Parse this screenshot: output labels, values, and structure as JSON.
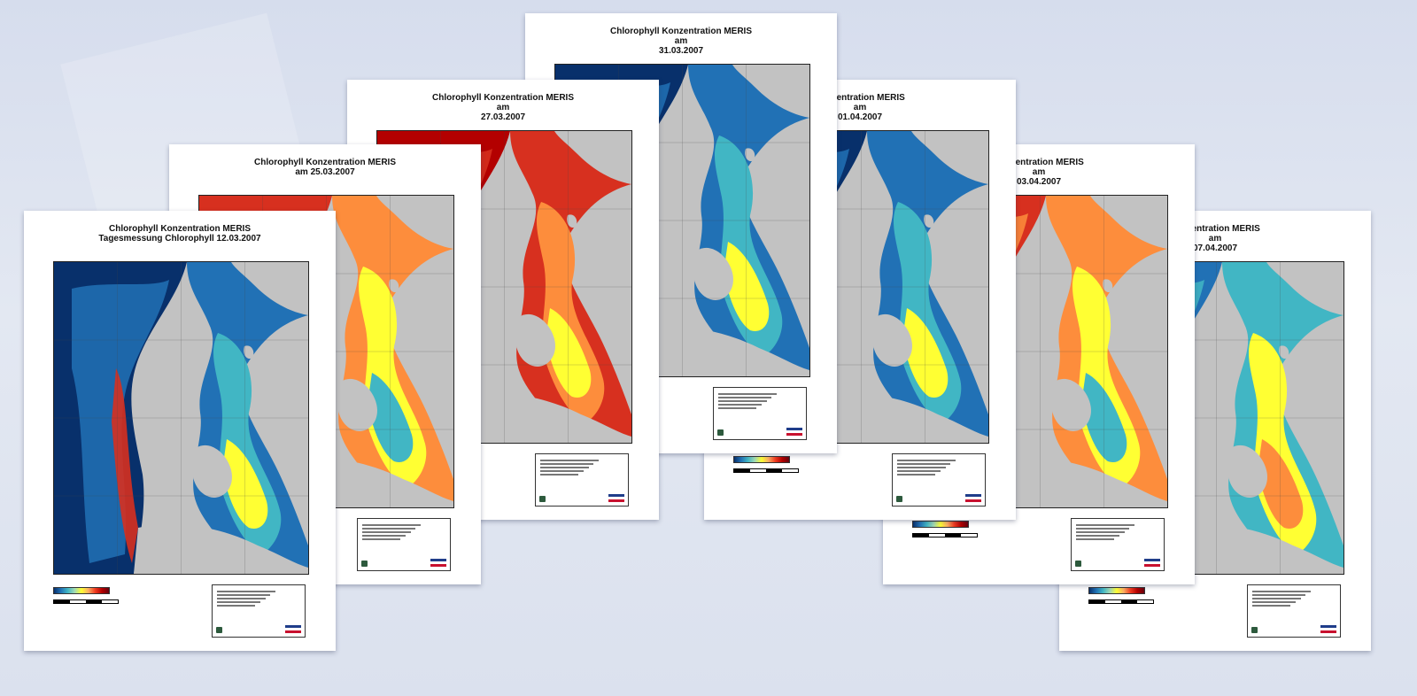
{
  "sheets": [
    {
      "title_lines": [
        "Chlorophyll Konzentration MERIS",
        "Tagesmessung Chlorophyll 12.03.2007"
      ],
      "date": "12.03.2007",
      "state": "mixed-red-coast"
    },
    {
      "title_lines": [
        "Chlorophyll Konzentration MERIS",
        "am 25.03.2007"
      ],
      "date": "25.03.2007",
      "state": "orange"
    },
    {
      "title_lines": [
        "Chlorophyll Konzentration MERIS",
        "am",
        "27.03.2007"
      ],
      "date": "27.03.2007",
      "state": "red"
    },
    {
      "title_lines": [
        "Chlorophyll Konzentration MERIS",
        "am",
        "31.03.2007"
      ],
      "date": "31.03.2007",
      "state": "blue"
    },
    {
      "title_lines": [
        "Konzentration MERIS",
        "am",
        "01.04.2007"
      ],
      "date": "01.04.2007",
      "state": "blue"
    },
    {
      "title_lines": [
        "Konzentration MERIS",
        "am",
        "03.04.2007"
      ],
      "date": "03.04.2007",
      "state": "orange"
    },
    {
      "title_lines": [
        "Konzentration MERIS",
        "am",
        "07.04.2007"
      ],
      "date": "07.04.2007",
      "state": "mixed"
    }
  ],
  "colors": {
    "land": "#c2c2c2",
    "deep_blue": "#08306b",
    "blue": "#2171b5",
    "cyan": "#41b6c4",
    "yellow": "#ffff33",
    "orange": "#fd8d3c",
    "red": "#d7301f",
    "dark_red": "#b30000",
    "sheet": "#ffffff"
  }
}
